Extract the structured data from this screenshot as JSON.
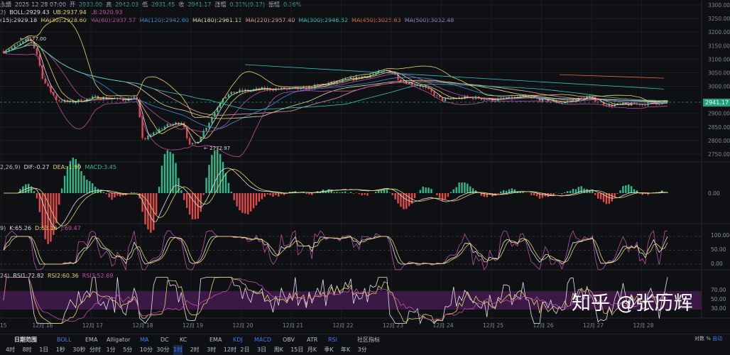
{
  "header": {
    "symbol_tail": "永續",
    "date": "2025-12-28 07:00",
    "open_label": "开",
    "open": "2932.00",
    "high_label": "高",
    "high": "2942.03",
    "low_label": "低",
    "low": "2931.45",
    "close_label": "收",
    "close": "2941.17",
    "change_label": "涨幅",
    "change": "0.31%(9.17)",
    "amp_label": "振幅",
    "amp": "0.36%"
  },
  "boll": {
    "prefix": "2)",
    "mid": "BOLL:2929.43",
    "ub": "UB:2937.94",
    "lb": "LB:2920.93"
  },
  "ma": [
    {
      "t": "(15):2929.18",
      "c": "#e6e6e6"
    },
    {
      "t": "MA(30):2928.60",
      "c": "#e8d36a"
    },
    {
      "t": "MA(60):2937.57",
      "c": "#c04fa8"
    },
    {
      "t": "MA(120):2942.60",
      "c": "#3d8fd8"
    },
    {
      "t": "MA(180):2961.13",
      "c": "#e0e0a0"
    },
    {
      "t": "MA(220):2957.40",
      "c": "#e7a0a0"
    },
    {
      "t": "MA(300):2946.52",
      "c": "#32c8c8"
    },
    {
      "t": "MA(450):3025.63",
      "c": "#e0703a"
    },
    {
      "t": "MA(500):3032.48",
      "c": "#a080e0"
    }
  ],
  "macd": {
    "prefix": "2,26,9)",
    "dif": "DIF:-0.27",
    "dea": "DEA:-1.99",
    "macd": "MACD:3.45",
    "zero": "0.00"
  },
  "kdj": {
    "prefix": "9)",
    "k": "K:65.26",
    "d": "D:63.16",
    "j": "J:69.47",
    "ticks": [
      "100.00",
      "50.00",
      "0.00"
    ]
  },
  "rsi": {
    "prefix": "24)",
    "r1": "RSI1:72.82",
    "r2": "RSI2:60.36",
    "r3": "RSI3:52.69",
    "ticks": [
      "70.00",
      "50.00",
      "30.00"
    ]
  },
  "chart_data": {
    "type": "candlestick",
    "y_ticks": [
      "3300.00",
      "3250.00",
      "3200.00",
      "3150.00",
      "3100.00",
      "3050.00",
      "3000.00",
      "2900.00",
      "2850.00",
      "2800.00",
      "2750.00"
    ],
    "ylim": [
      2750,
      3300
    ],
    "last_price": "2941.17",
    "high_marker": "3177.00",
    "low_marker": "2772.97",
    "x_ticks": [
      "15",
      "12月 16",
      "12月 17",
      "12月 18",
      "12月 19",
      "12月 20",
      "12月 21",
      "12月 22",
      "12月 23",
      "12月 24",
      "12月 25",
      "12月 26",
      "12月 27",
      "12月 28"
    ],
    "approx_close_path": [
      [
        15.0,
        3130
      ],
      [
        15.2,
        3150
      ],
      [
        15.4,
        3177
      ],
      [
        15.5,
        3120
      ],
      [
        15.6,
        3020
      ],
      [
        15.8,
        2950
      ],
      [
        16.0,
        2940
      ],
      [
        16.2,
        2950
      ],
      [
        16.4,
        2960
      ],
      [
        16.8,
        2950
      ],
      [
        17.0,
        2960
      ],
      [
        17.1,
        2800
      ],
      [
        17.4,
        2850
      ],
      [
        17.7,
        2870
      ],
      [
        17.8,
        2780
      ],
      [
        17.9,
        2790
      ],
      [
        18.1,
        2870
      ],
      [
        18.3,
        2960
      ],
      [
        18.5,
        2980
      ],
      [
        18.9,
        2990
      ],
      [
        19.5,
        2990
      ],
      [
        19.9,
        3010
      ],
      [
        20.3,
        3030
      ],
      [
        20.8,
        3060
      ],
      [
        21.0,
        3020
      ],
      [
        21.3,
        3000
      ],
      [
        21.6,
        2950
      ],
      [
        22.0,
        2960
      ],
      [
        22.4,
        2950
      ],
      [
        22.8,
        2960
      ],
      [
        23.4,
        2940
      ],
      [
        23.8,
        2960
      ],
      [
        24.1,
        2930
      ],
      [
        24.6,
        2935
      ],
      [
        25.0,
        2941.17
      ]
    ]
  },
  "watermark": "知乎 @张历辉",
  "axis_opts": [
    "对数",
    "%",
    "自动"
  ],
  "toolbar": [
    {
      "t": "日期范围",
      "b": 0
    },
    {
      "t": "BOLL",
      "b": 1
    },
    {
      "t": "EMA",
      "b": 0
    },
    {
      "t": "Alligator",
      "b": 0
    },
    {
      "t": "MA",
      "b": 1
    },
    {
      "t": "DC",
      "b": 0
    },
    {
      "t": "KC",
      "b": 0
    },
    {
      "t": "EMA",
      "b": 0
    },
    {
      "t": "KDJ",
      "b": 1
    },
    {
      "t": "MACD",
      "b": 1
    },
    {
      "t": "OBV",
      "b": 0
    },
    {
      "t": "ATR",
      "b": 0
    },
    {
      "t": "RSI",
      "b": 1
    },
    {
      "t": "社区指标",
      "b": 0
    }
  ],
  "timeframes": [
    "4时",
    "8时",
    "1日",
    "1秒",
    "30秒",
    "分时",
    "1分",
    "5分",
    "10分",
    "30分",
    "1时",
    "2时",
    "3时",
    "12时",
    "2日",
    "3日",
    "周K",
    "15日",
    "月K",
    "季K",
    "年K",
    "3分"
  ],
  "active_timeframe": "1时",
  "colors": {
    "up": "#2fb889",
    "down": "#e24a4a",
    "bg": "#0f1013",
    "accent": "#3d7bf5"
  }
}
